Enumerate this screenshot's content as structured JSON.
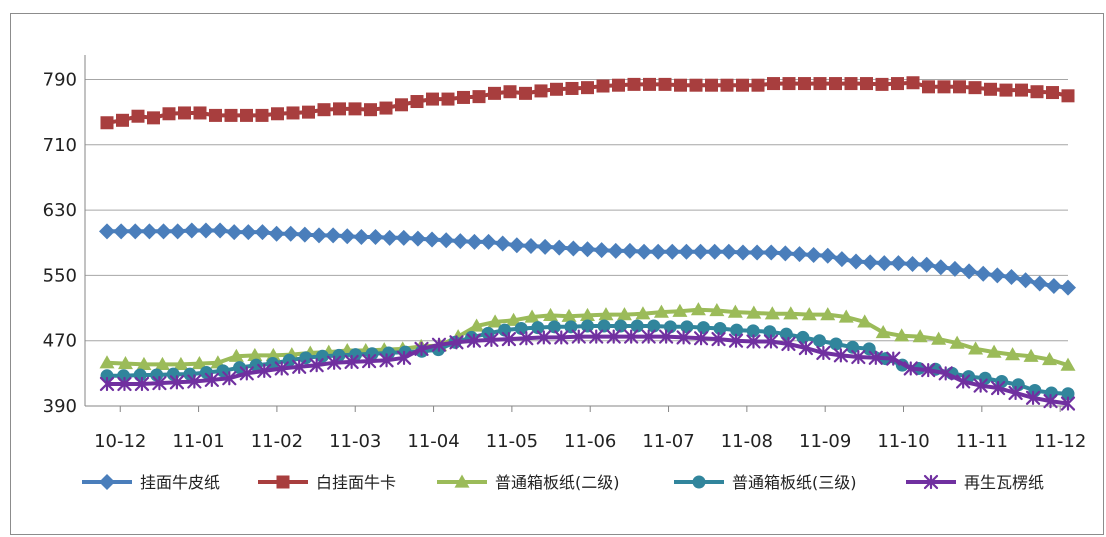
{
  "chart_data": {
    "type": "line",
    "title": "",
    "xlabel": "",
    "ylabel": "",
    "ylim": [
      390,
      820
    ],
    "yticks": [
      390,
      470,
      550,
      630,
      710,
      790
    ],
    "x_tick_labels": [
      "10-12",
      "11-01",
      "11-02",
      "11-03",
      "11-04",
      "11-05",
      "11-06",
      "11-07",
      "11-08",
      "11-09",
      "11-10",
      "11-11",
      "11-12"
    ],
    "grid": "horizontal",
    "legend_position": "bottom",
    "series": [
      {
        "name": "挂面牛皮纸",
        "color": "#4a7ebb",
        "marker": "diamond",
        "values": [
          604,
          604,
          604,
          604,
          604,
          604,
          605,
          605,
          605,
          603,
          603,
          603,
          601,
          601,
          600,
          599,
          599,
          598,
          597,
          597,
          596,
          596,
          595,
          594,
          593,
          592,
          591,
          591,
          589,
          587,
          586,
          585,
          584,
          583,
          582,
          581,
          580,
          580,
          579,
          579,
          579,
          579,
          579,
          579,
          579,
          578,
          578,
          578,
          577,
          576,
          575,
          574,
          570,
          567,
          566,
          565,
          565,
          564,
          563,
          560,
          558,
          555,
          552,
          550,
          548,
          544,
          540,
          537,
          535
        ]
      },
      {
        "name": "白挂面牛卡",
        "color": "#a83e3e",
        "marker": "square",
        "values": [
          737,
          740,
          745,
          743,
          748,
          749,
          749,
          746,
          746,
          746,
          746,
          748,
          749,
          750,
          753,
          754,
          754,
          753,
          755,
          759,
          763,
          766,
          766,
          768,
          769,
          773,
          775,
          773,
          776,
          778,
          779,
          780,
          782,
          783,
          784,
          784,
          784,
          783,
          783,
          783,
          783,
          783,
          783,
          785,
          785,
          785,
          785,
          785,
          785,
          785,
          784,
          785,
          786,
          781,
          781,
          781,
          780,
          778,
          777,
          777,
          775,
          774,
          770
        ]
      },
      {
        "name": "普通箱板纸(二级)",
        "color": "#9bbb59",
        "marker": "triangle",
        "values": [
          443,
          442,
          441,
          441,
          441,
          442,
          443,
          451,
          452,
          452,
          453,
          455,
          456,
          458,
          458,
          459,
          460,
          463,
          464,
          475,
          488,
          493,
          495,
          499,
          501,
          500,
          501,
          502,
          502,
          503,
          505,
          506,
          508,
          507,
          505,
          504,
          503,
          503,
          502,
          502,
          499,
          493,
          480,
          476,
          475,
          472,
          467,
          460,
          456,
          453,
          451,
          447,
          440
        ]
      },
      {
        "name": "普通箱板纸(三级)",
        "color": "#31859c",
        "marker": "circle",
        "values": [
          427,
          427,
          428,
          428,
          429,
          429,
          431,
          433,
          437,
          440,
          442,
          446,
          449,
          451,
          452,
          453,
          454,
          455,
          456,
          457,
          459,
          468,
          474,
          479,
          483,
          485,
          486,
          487,
          487,
          488,
          488,
          488,
          488,
          488,
          487,
          487,
          486,
          485,
          483,
          482,
          481,
          478,
          474,
          470,
          466,
          462,
          460,
          448,
          440,
          436,
          435,
          430,
          426,
          424,
          420,
          416,
          409,
          406,
          405
        ]
      },
      {
        "name": "再生瓦楞纸",
        "color": "#7030a0",
        "marker": "star",
        "values": [
          417,
          417,
          417,
          418,
          419,
          420,
          422,
          424,
          430,
          433,
          436,
          438,
          440,
          443,
          444,
          445,
          446,
          449,
          460,
          465,
          468,
          470,
          471,
          472,
          473,
          474,
          474,
          475,
          475,
          475,
          475,
          475,
          475,
          474,
          473,
          472,
          470,
          469,
          469,
          466,
          461,
          455,
          452,
          450,
          449,
          448,
          436,
          434,
          430,
          420,
          415,
          412,
          406,
          400,
          396,
          393
        ]
      }
    ]
  }
}
